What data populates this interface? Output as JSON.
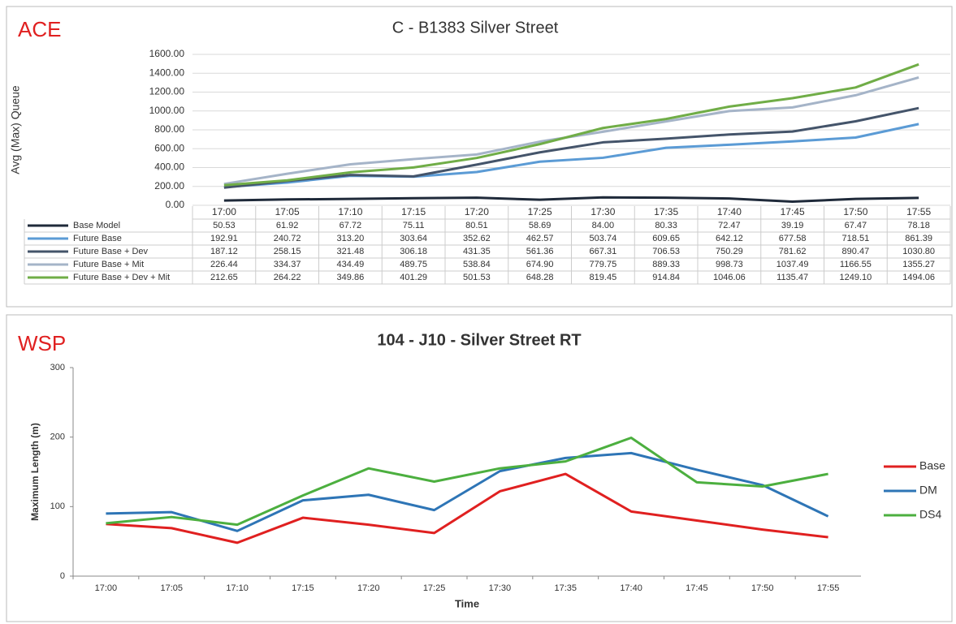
{
  "chart_data": [
    {
      "type": "line",
      "panel_label": "ACE",
      "title": "C - B1383 Silver Street",
      "y_label": "Avg (Max) Queue",
      "categories": [
        "17:00",
        "17:05",
        "17:10",
        "17:15",
        "17:20",
        "17:25",
        "17:30",
        "17:35",
        "17:40",
        "17:45",
        "17:50",
        "17:55"
      ],
      "ylim": [
        0,
        1600
      ],
      "yticks": [
        {
          "value": 0,
          "label": "0.00"
        },
        {
          "value": 200,
          "label": "200.00"
        },
        {
          "value": 400,
          "label": "400.00"
        },
        {
          "value": 600,
          "label": "600.00"
        },
        {
          "value": 800,
          "label": "800.00"
        },
        {
          "value": 1000,
          "label": "1000.00"
        },
        {
          "value": 1200,
          "label": "1200.00"
        },
        {
          "value": 1400,
          "label": "1400.00"
        },
        {
          "value": 1600,
          "label": "1600.00"
        }
      ],
      "grid": true,
      "data_table": true,
      "series": [
        {
          "name": "Base Model",
          "color": "#1f2a3a",
          "values": [
            50.53,
            61.92,
            67.72,
            75.11,
            80.51,
            58.69,
            84.0,
            80.33,
            72.47,
            39.19,
            67.47,
            78.18
          ],
          "value_labels": [
            "50.53",
            "61.92",
            "67.72",
            "75.11",
            "80.51",
            "58.69",
            "84.00",
            "80.33",
            "72.47",
            "39.19",
            "67.47",
            "78.18"
          ]
        },
        {
          "name": "Future Base",
          "color": "#5b9bd5",
          "values": [
            192.91,
            240.72,
            313.2,
            303.64,
            352.62,
            462.57,
            503.74,
            609.65,
            642.12,
            677.58,
            718.51,
            861.39
          ],
          "value_labels": [
            "192.91",
            "240.72",
            "313.20",
            "303.64",
            "352.62",
            "462.57",
            "503.74",
            "609.65",
            "642.12",
            "677.58",
            "718.51",
            "861.39"
          ]
        },
        {
          "name": "Future Base + Dev",
          "color": "#44546a",
          "values": [
            187.12,
            258.15,
            321.48,
            306.18,
            431.35,
            561.36,
            667.31,
            706.53,
            750.29,
            781.62,
            890.47,
            1030.8
          ],
          "value_labels": [
            "187.12",
            "258.15",
            "321.48",
            "306.18",
            "431.35",
            "561.36",
            "667.31",
            "706.53",
            "750.29",
            "781.62",
            "890.47",
            "1030.80"
          ]
        },
        {
          "name": "Future Base + Mit",
          "color": "#a5b4c8",
          "values": [
            226.44,
            334.37,
            434.49,
            489.75,
            538.84,
            674.9,
            779.75,
            889.33,
            998.73,
            1037.49,
            1166.55,
            1355.27
          ],
          "value_labels": [
            "226.44",
            "334.37",
            "434.49",
            "489.75",
            "538.84",
            "674.90",
            "779.75",
            "889.33",
            "998.73",
            "1037.49",
            "1166.55",
            "1355.27"
          ]
        },
        {
          "name": "Future Base + Dev + Mit",
          "color": "#70ad47",
          "values": [
            212.65,
            264.22,
            349.86,
            401.29,
            501.53,
            648.28,
            819.45,
            914.84,
            1046.06,
            1135.47,
            1249.1,
            1494.06
          ],
          "value_labels": [
            "212.65",
            "264.22",
            "349.86",
            "401.29",
            "501.53",
            "648.28",
            "819.45",
            "914.84",
            "1046.06",
            "1135.47",
            "1249.10",
            "1494.06"
          ]
        }
      ]
    },
    {
      "type": "line",
      "panel_label": "WSP",
      "title": "104 - J10 - Silver Street RT",
      "y_label": "Maximum Length (m)",
      "x_label": "Time",
      "categories": [
        "17:00",
        "17:05",
        "17:10",
        "17:15",
        "17:20",
        "17:25",
        "17:30",
        "17:35",
        "17:40",
        "17:45",
        "17:50",
        "17:55"
      ],
      "ylim": [
        0,
        300
      ],
      "yticks": [
        0,
        100,
        200,
        300
      ],
      "grid": false,
      "data_table": false,
      "series": [
        {
          "name": "Base",
          "color": "#e02020",
          "values": [
            75,
            69,
            48,
            84,
            74,
            62,
            122,
            147,
            93,
            80,
            67,
            56
          ]
        },
        {
          "name": "DM",
          "color": "#2e75b6",
          "values": [
            90,
            92,
            65,
            109,
            117,
            95,
            151,
            170,
            177,
            153,
            131,
            86
          ]
        },
        {
          "name": "DS4",
          "color": "#4caf3f",
          "values": [
            76,
            85,
            74,
            116,
            155,
            136,
            155,
            165,
            199,
            135,
            129,
            147
          ]
        }
      ]
    }
  ]
}
